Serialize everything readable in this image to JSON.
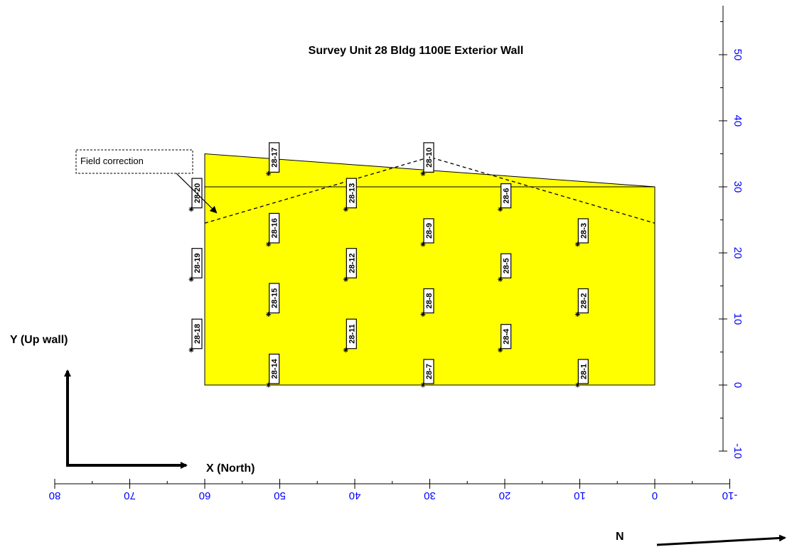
{
  "title": "Survey Unit 28 Bldg 1100E Exterior Wall",
  "colors": {
    "fill": "#ffff00",
    "axis_text": "#0000ff",
    "line": "#000000"
  },
  "annotation": "Field correction",
  "labels": {
    "y_axis": "Y (Up wall)",
    "x_axis": "X (North)",
    "north": "N"
  },
  "chart_data": {
    "type": "scatter",
    "x_ticks": [
      "80",
      "70",
      "60",
      "50",
      "40",
      "30",
      "20",
      "10",
      "0",
      "-10"
    ],
    "y_ticks": [
      "50",
      "40",
      "30",
      "20",
      "10",
      "0",
      "-10"
    ],
    "xlim": [
      -10,
      80
    ],
    "ylim": [
      -10,
      58
    ],
    "x_reversed": true,
    "wall_polygon": [
      [
        60,
        0
      ],
      [
        0,
        0
      ],
      [
        0,
        30
      ],
      [
        60,
        35
      ]
    ],
    "horizontal_line": {
      "y": 30,
      "x_from": 60,
      "x_to": 0
    },
    "field_correction_line": [
      [
        60,
        24.5
      ],
      [
        30,
        34.5
      ],
      [
        0,
        24.5
      ]
    ],
    "points": [
      {
        "id": "28-1",
        "x": 10.3,
        "y": 0
      },
      {
        "id": "28-2",
        "x": 10.3,
        "y": 10.7
      },
      {
        "id": "28-3",
        "x": 10.3,
        "y": 21.3
      },
      {
        "id": "28-4",
        "x": 20.6,
        "y": 5.3
      },
      {
        "id": "28-5",
        "x": 20.6,
        "y": 16
      },
      {
        "id": "28-6",
        "x": 20.6,
        "y": 26.6
      },
      {
        "id": "28-7",
        "x": 30.9,
        "y": 0
      },
      {
        "id": "28-8",
        "x": 30.9,
        "y": 10.7
      },
      {
        "id": "28-9",
        "x": 30.9,
        "y": 21.3
      },
      {
        "id": "28-10",
        "x": 30.9,
        "y": 32
      },
      {
        "id": "28-11",
        "x": 41.2,
        "y": 5.3
      },
      {
        "id": "28-12",
        "x": 41.2,
        "y": 16
      },
      {
        "id": "28-13",
        "x": 41.2,
        "y": 26.6
      },
      {
        "id": "28-14",
        "x": 51.5,
        "y": 0
      },
      {
        "id": "28-15",
        "x": 51.5,
        "y": 10.7
      },
      {
        "id": "28-16",
        "x": 51.5,
        "y": 21.3
      },
      {
        "id": "28-17",
        "x": 51.5,
        "y": 32
      },
      {
        "id": "28-18",
        "x": 61.8,
        "y": 5.3
      },
      {
        "id": "28-19",
        "x": 61.8,
        "y": 16
      },
      {
        "id": "28-20",
        "x": 61.8,
        "y": 26.6
      }
    ]
  }
}
